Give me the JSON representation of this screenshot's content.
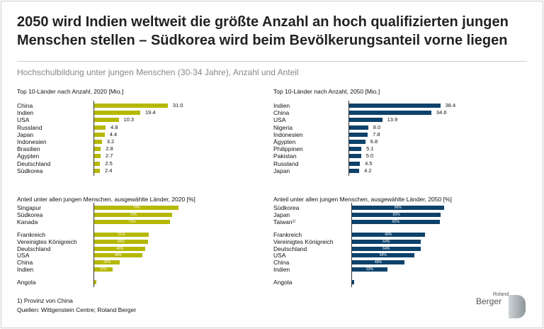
{
  "title": "2050 wird Indien weltweit die größte Anzahl an hoch qualifizierten jungen Menschen stellen – Südkorea wird beim Bevölkerungsanteil vorne liegen",
  "subtitle": "Hochschulbildung unter jungen Menschen (30-34 Jahre), Anzahl und Anteil",
  "footnote": "1) Provinz von China",
  "source": "Quellen: Wittgenstein Centre; Roland Berger",
  "logo": {
    "top": "Roland",
    "main": "Berger"
  },
  "colors": {
    "c2020": "#b5b800",
    "c2050": "#0d426b"
  },
  "chart_data": [
    {
      "type": "bar",
      "title": "Top 10-Länder nach Anzahl, 2020 [Mio.]",
      "unit": "Mio.",
      "categories": [
        "China",
        "Indien",
        "USA",
        "Russland",
        "Japan",
        "Indonesien",
        "Brasilien",
        "Ägypten",
        "Deutschland",
        "Südkorea"
      ],
      "values": [
        31.0,
        19.4,
        10.3,
        4.8,
        4.4,
        3.2,
        2.8,
        2.7,
        2.5,
        2.4
      ],
      "labels": [
        "31.0",
        "19.4",
        "10.3",
        "4.8",
        "4.4",
        "3.2",
        "2.8",
        "2.7",
        "2.5",
        "2.4"
      ]
    },
    {
      "type": "bar",
      "title": "Top 10-Länder nach Anzahl, 2050 [Mio.]",
      "unit": "Mio.",
      "categories": [
        "Indien",
        "China",
        "USA",
        "Nigeria",
        "Indonesien",
        "Ägypten",
        "Philippinen",
        "Pakistan",
        "Russland",
        "Japan"
      ],
      "values": [
        38.4,
        34.6,
        13.9,
        8.0,
        7.8,
        6.8,
        5.1,
        5.0,
        4.5,
        4.2
      ],
      "labels": [
        "38.4",
        "34.6",
        "13.9",
        "8.0",
        "7.8",
        "6.8",
        "5.1",
        "5.0",
        "4.5",
        "4.2"
      ]
    },
    {
      "type": "bar",
      "title": "Anteil unter allen jungen Menschen, ausgewählte Länder, 2020 [%]",
      "unit": "%",
      "categories": [
        "Singapur",
        "Südkorea",
        "Kanada",
        "Frankreich",
        "Vereinigtes Königreich",
        "Deutschland",
        "USA",
        "China",
        "Indien",
        "Angola"
      ],
      "values": [
        79,
        73,
        71,
        51,
        50,
        48,
        45,
        24,
        17,
        2
      ],
      "labels": [
        "79%",
        "73%",
        "71%",
        "51%",
        "50%",
        "48%",
        "45%",
        "24%",
        "17%",
        ""
      ]
    },
    {
      "type": "bar",
      "title": "Anteil unter allen jungen Menschen, ausgewählte Länder, 2050 [%]",
      "unit": "%",
      "categories": [
        "Südkorea",
        "Japan",
        "Taiwan¹⁾",
        "Frankreich",
        "Vereinigtes Königreich",
        "Deutschland",
        "USA",
        "China",
        "Indien",
        "Angola"
      ],
      "values": [
        86,
        83,
        82,
        68,
        64,
        64,
        58,
        49,
        33,
        2
      ],
      "labels": [
        "86%",
        "83%",
        "82%",
        "68%",
        "64%",
        "64%",
        "58%",
        "49%",
        "33%",
        ""
      ]
    }
  ]
}
